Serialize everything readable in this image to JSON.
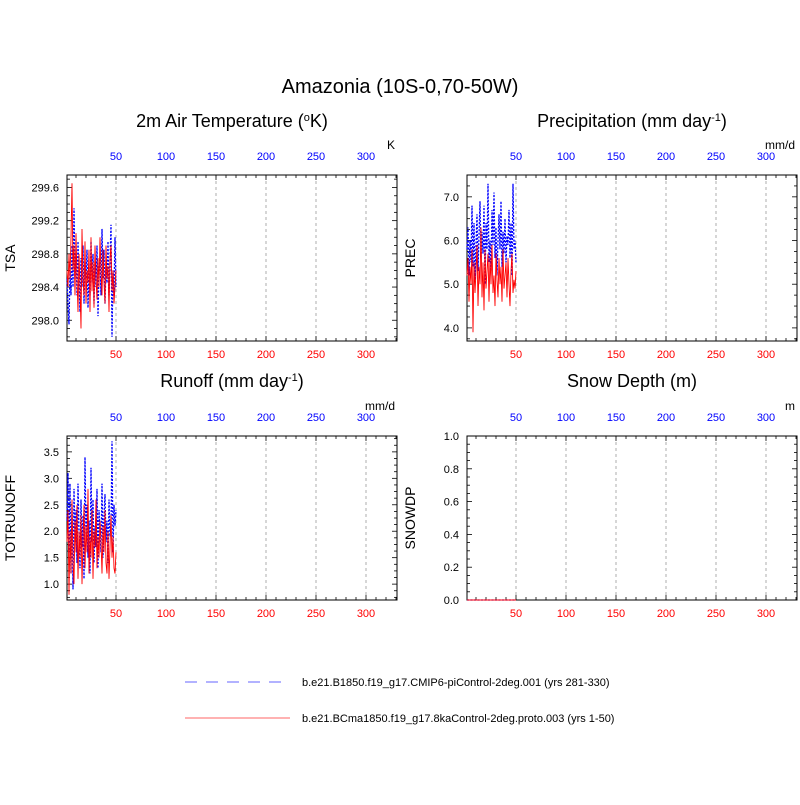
{
  "chart_data": {
    "title": "Amazonia (10S-0,70-50W)",
    "colors": {
      "top_axis": "#0000ff",
      "bottom_axis": "#ff0000",
      "run1": "#0000ff",
      "run2": "#ff0000",
      "grid": "#999999"
    },
    "x_axis": {
      "range": [
        1,
        331
      ],
      "ticks": [
        50,
        100,
        150,
        200,
        250,
        300
      ]
    },
    "panels": [
      {
        "type": "line",
        "title": "2m Air Temperature (",
        "title_sup": "o",
        "title_suffix": "K)",
        "ylabel": "TSA",
        "units": "K",
        "ylim": [
          297.75,
          299.75
        ],
        "yticks": [
          "298.0",
          "298.4",
          "298.8",
          "299.2",
          "299.6"
        ],
        "series": [
          {
            "name": "b.e21.B1850.f19_g17.CMIP6-piControl-2deg.001",
            "style": "dash",
            "x": [
              1,
              2,
              3,
              4,
              5,
              6,
              7,
              8,
              9,
              10,
              11,
              12,
              13,
              14,
              15,
              16,
              17,
              18,
              19,
              20,
              21,
              22,
              23,
              24,
              25,
              26,
              27,
              28,
              29,
              30,
              31,
              32,
              33,
              34,
              35,
              36,
              37,
              38,
              39,
              40,
              41,
              42,
              43,
              44,
              45,
              46,
              47,
              48,
              49,
              50
            ],
            "values": [
              298.5,
              298.2,
              297.95,
              298.6,
              298.3,
              298.9,
              298.4,
              299.35,
              298.5,
              298.8,
              298.3,
              298.95,
              298.5,
              298.1,
              298.75,
              298.4,
              298.9,
              298.2,
              298.7,
              298.5,
              298.85,
              298.15,
              298.6,
              298.3,
              298.95,
              298.45,
              298.8,
              298.2,
              298.7,
              298.4,
              298.9,
              298.05,
              298.6,
              298.75,
              298.3,
              299.1,
              298.5,
              298.85,
              298.2,
              298.65,
              298.45,
              298.95,
              298.3,
              298.7,
              299.15,
              297.8,
              298.6,
              298.3,
              299.0,
              298.4
            ]
          },
          {
            "name": "b.e21.BCma1850.f19_g17.8kaControl-2deg.proto.003",
            "style": "solid",
            "x": [
              1,
              2,
              3,
              4,
              5,
              6,
              7,
              8,
              9,
              10,
              11,
              12,
              13,
              14,
              15,
              16,
              17,
              18,
              19,
              20,
              21,
              22,
              23,
              24,
              25,
              26,
              27,
              28,
              29,
              30,
              31,
              32,
              33,
              34,
              35,
              36,
              37,
              38,
              39,
              40,
              41,
              42,
              43,
              44,
              45,
              46,
              47,
              48,
              49,
              50
            ],
            "values": [
              298.6,
              298.4,
              298.8,
              298.5,
              299.0,
              299.65,
              298.6,
              298.9,
              298.3,
              299.05,
              298.5,
              298.1,
              298.8,
              298.4,
              297.9,
              299.1,
              298.5,
              298.3,
              298.95,
              298.2,
              298.6,
              298.45,
              298.85,
              298.1,
              299.0,
              298.35,
              298.7,
              298.15,
              298.9,
              298.5,
              298.25,
              298.75,
              298.4,
              299.0,
              298.6,
              298.3,
              298.85,
              298.45,
              298.2,
              298.9,
              298.5,
              298.65,
              298.1,
              298.75,
              298.9,
              298.35,
              298.6,
              298.2,
              298.4,
              298.6
            ]
          }
        ]
      },
      {
        "type": "line",
        "title": "Precipitation (mm day",
        "title_sup": "-1",
        "title_suffix": ")",
        "ylabel": "PREC",
        "units": "mm/d",
        "ylim": [
          3.7,
          7.5
        ],
        "yticks": [
          "4.0",
          "5.0",
          "6.0",
          "7.0"
        ],
        "series": [
          {
            "name": "b.e21.B1850.f19_g17.CMIP6-piControl-2deg.001",
            "style": "dash",
            "x": [
              1,
              2,
              3,
              4,
              5,
              6,
              7,
              8,
              9,
              10,
              11,
              12,
              13,
              14,
              15,
              16,
              17,
              18,
              19,
              20,
              21,
              22,
              23,
              24,
              25,
              26,
              27,
              28,
              29,
              30,
              31,
              32,
              33,
              34,
              35,
              36,
              37,
              38,
              39,
              40,
              41,
              42,
              43,
              44,
              45,
              46,
              47,
              48,
              49,
              50
            ],
            "values": [
              5.8,
              6.3,
              5.2,
              6.0,
              5.5,
              6.8,
              5.4,
              6.4,
              5.1,
              5.9,
              6.6,
              5.3,
              6.1,
              6.9,
              5.6,
              6.2,
              5.7,
              6.8,
              5.0,
              6.4,
              5.8,
              7.3,
              5.5,
              6.0,
              5.3,
              6.7,
              5.9,
              7.1,
              5.6,
              6.3,
              5.2,
              6.0,
              6.6,
              5.8,
              6.9,
              5.4,
              6.2,
              5.7,
              6.5,
              5.5,
              6.1,
              5.9,
              6.7,
              5.6,
              6.4,
              5.2,
              7.3,
              5.8,
              6.0,
              5.5
            ]
          },
          {
            "name": "b.e21.BCma1850.f19_g17.8kaControl-2deg.proto.003",
            "style": "solid",
            "x": [
              1,
              2,
              3,
              4,
              5,
              6,
              7,
              8,
              9,
              10,
              11,
              12,
              13,
              14,
              15,
              16,
              17,
              18,
              19,
              20,
              21,
              22,
              23,
              24,
              25,
              26,
              27,
              28,
              29,
              30,
              31,
              32,
              33,
              34,
              35,
              36,
              37,
              38,
              39,
              40,
              41,
              42,
              43,
              44,
              45,
              46,
              47,
              48,
              49,
              50
            ],
            "values": [
              5.2,
              5.6,
              4.6,
              5.4,
              5.0,
              5.8,
              3.9,
              5.5,
              4.8,
              5.3,
              5.9,
              4.5,
              5.4,
              5.0,
              6.3,
              4.7,
              5.5,
              4.4,
              5.8,
              4.9,
              5.3,
              5.7,
              4.6,
              5.6,
              5.0,
              5.9,
              4.8,
              5.2,
              4.5,
              5.7,
              5.1,
              4.7,
              5.6,
              5.0,
              5.4,
              4.6,
              5.8,
              4.9,
              5.2,
              5.5,
              4.7,
              5.6,
              5.0,
              4.5,
              5.3,
              5.7,
              4.8,
              5.1,
              4.9,
              5.3
            ]
          }
        ]
      },
      {
        "type": "line",
        "title": "Runoff (mm day",
        "title_sup": "-1",
        "title_suffix": ")",
        "ylabel": "TOTRUNOFF",
        "units": "mm/d",
        "ylim": [
          0.7,
          3.8
        ],
        "yticks": [
          "1.0",
          "1.5",
          "2.0",
          "2.5",
          "3.0",
          "3.5"
        ],
        "series": [
          {
            "name": "b.e21.B1850.f19_g17.CMIP6-piControl-2deg.001",
            "style": "dash",
            "x": [
              1,
              2,
              3,
              4,
              5,
              6,
              7,
              8,
              9,
              10,
              11,
              12,
              13,
              14,
              15,
              16,
              17,
              18,
              19,
              20,
              21,
              22,
              23,
              24,
              25,
              26,
              27,
              28,
              29,
              30,
              31,
              32,
              33,
              34,
              35,
              36,
              37,
              38,
              39,
              40,
              41,
              42,
              43,
              44,
              45,
              46,
              47,
              48,
              49,
              50
            ],
            "values": [
              2.2,
              3.1,
              1.6,
              2.9,
              1.2,
              2.5,
              0.9,
              2.8,
              1.8,
              2.4,
              1.4,
              2.9,
              2.0,
              1.3,
              2.6,
              1.7,
              2.3,
              1.1,
              3.4,
              1.9,
              2.5,
              1.5,
              2.2,
              1.2,
              3.2,
              1.8,
              2.6,
              1.4,
              2.1,
              1.7,
              2.8,
              1.3,
              2.4,
              2.0,
              1.6,
              2.9,
              1.5,
              2.3,
              2.7,
              1.8,
              2.2,
              1.4,
              2.6,
              1.9,
              2.0,
              3.7,
              1.6,
              2.5,
              2.1,
              2.4
            ]
          },
          {
            "name": "b.e21.BCma1850.f19_g17.8kaControl-2deg.proto.003",
            "style": "solid",
            "x": [
              1,
              2,
              3,
              4,
              5,
              6,
              7,
              8,
              9,
              10,
              11,
              12,
              13,
              14,
              15,
              16,
              17,
              18,
              19,
              20,
              21,
              22,
              23,
              24,
              25,
              26,
              27,
              28,
              29,
              30,
              31,
              32,
              33,
              34,
              35,
              36,
              37,
              38,
              39,
              40,
              41,
              42,
              43,
              44,
              45,
              46,
              47,
              48,
              49,
              50
            ],
            "values": [
              1.8,
              2.4,
              0.8,
              2.0,
              1.2,
              2.6,
              1.4,
              1.0,
              2.2,
              1.6,
              2.5,
              1.1,
              2.0,
              1.5,
              2.3,
              1.0,
              1.8,
              2.5,
              1.3,
              2.1,
              1.6,
              2.8,
              1.2,
              1.9,
              1.5,
              2.4,
              1.1,
              2.0,
              1.7,
              2.6,
              1.3,
              1.9,
              1.5,
              2.2,
              1.8,
              1.2,
              2.1,
              1.6,
              2.4,
              1.4,
              1.2,
              2.0,
              1.1,
              1.7,
              2.3,
              1.5,
              1.9,
              1.3,
              1.2,
              1.6
            ]
          }
        ]
      },
      {
        "type": "line",
        "title": "Snow Depth (m)",
        "title_sup": "",
        "title_suffix": "",
        "ylabel": "SNOWDP",
        "units": "m",
        "ylim": [
          0.0,
          1.0
        ],
        "yticks": [
          "0.0",
          "0.2",
          "0.4",
          "0.6",
          "0.8",
          "1.0"
        ],
        "series": [
          {
            "name": "b.e21.B1850.f19_g17.CMIP6-piControl-2deg.001",
            "style": "dash",
            "x": [
              1,
              50
            ],
            "values": [
              0,
              0
            ]
          },
          {
            "name": "b.e21.BCma1850.f19_g17.8kaControl-2deg.proto.003",
            "style": "solid",
            "x": [
              1,
              50
            ],
            "values": [
              0,
              0
            ]
          }
        ]
      }
    ],
    "legend": {
      "position": "bottom-center",
      "entries": [
        {
          "label": "b.e21.B1850.f19_g17.CMIP6-piControl-2deg.001 (yrs 281-330)",
          "color": "#0000ff",
          "style": "dash"
        },
        {
          "label": "b.e21.BCma1850.f19_g17.8kaControl-2deg.proto.003 (yrs 1-50)",
          "color": "#ff0000",
          "style": "solid"
        }
      ]
    }
  }
}
